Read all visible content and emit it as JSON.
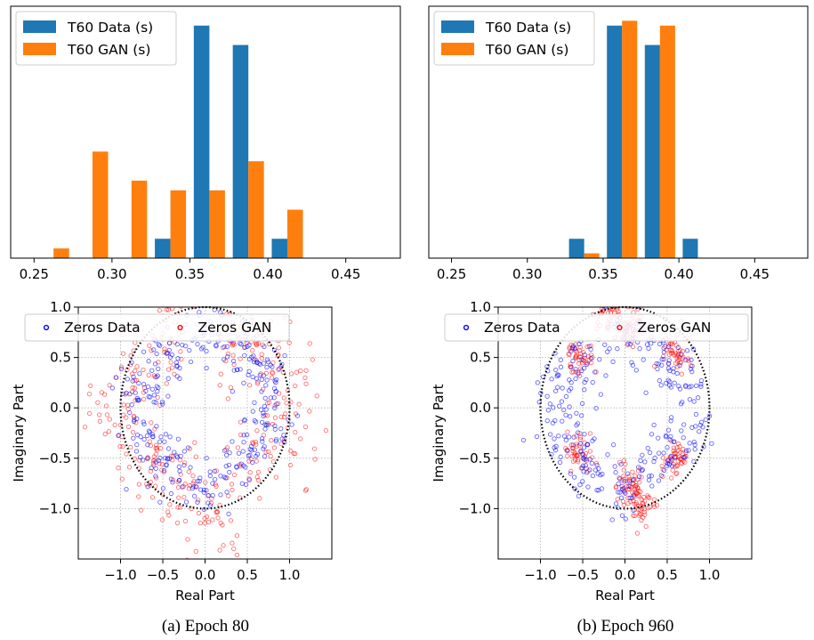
{
  "chart_data": [
    {
      "type": "bar",
      "panel": "a",
      "categories": [
        "0.25",
        "0.275",
        "0.30",
        "0.325",
        "0.35",
        "0.375",
        "0.40",
        "0.425"
      ],
      "series": [
        {
          "name": "T60 Data (s)",
          "color": "#1f77b4",
          "values": [
            0,
            0,
            0,
            2,
            24,
            22,
            2,
            0
          ]
        },
        {
          "name": "T60 GAN (s)",
          "color": "#ff7f0e",
          "values": [
            1,
            11,
            8,
            7,
            7,
            10,
            5,
            0
          ]
        }
      ],
      "xticks": [
        "0.25",
        "0.30",
        "0.35",
        "0.40",
        "0.45"
      ],
      "xlim": [
        0.235,
        0.485
      ],
      "legend": "top-left"
    },
    {
      "type": "bar",
      "panel": "b",
      "categories": [
        "0.25",
        "0.275",
        "0.30",
        "0.325",
        "0.35",
        "0.375",
        "0.40",
        "0.425"
      ],
      "series": [
        {
          "name": "T60 Data (s)",
          "color": "#1f77b4",
          "values": [
            0,
            0,
            0,
            2,
            24,
            22,
            2,
            0
          ]
        },
        {
          "name": "T60 GAN (s)",
          "color": "#ff7f0e",
          "values": [
            0,
            0,
            0,
            0.5,
            24.5,
            24,
            0,
            0
          ]
        }
      ],
      "xticks": [
        "0.25",
        "0.30",
        "0.35",
        "0.40",
        "0.45"
      ],
      "xlim": [
        0.235,
        0.485
      ],
      "legend": "top-left"
    },
    {
      "type": "scatter",
      "panel": "a",
      "xlabel": "Real Part",
      "ylabel": "Imaginary Part",
      "xlim": [
        -1.5,
        1.5
      ],
      "ylim": [
        -1.5,
        1.0
      ],
      "xticks": [
        "−1.0",
        "−0.5",
        "0.0",
        "0.5",
        "1.0"
      ],
      "yticks": [
        "1.0",
        "0.5",
        "0.0",
        "−0.5",
        "−1.0"
      ],
      "grid": true,
      "legend": "top",
      "unit_circle": true,
      "series": [
        {
          "name": "Zeros Data",
          "color": "#0000ff",
          "clusters": [
            [
              -0.45,
              0.5
            ],
            [
              0.45,
              0.55
            ],
            [
              -0.45,
              -0.55
            ],
            [
              0.45,
              -0.5
            ],
            [
              0.0,
              0.8
            ],
            [
              0.0,
              -0.8
            ],
            [
              -0.75,
              0.2
            ],
            [
              0.75,
              -0.2
            ],
            [
              0.7,
              0.3
            ],
            [
              -0.7,
              -0.3
            ]
          ],
          "spread": 0.22,
          "count": 320
        },
        {
          "name": "Zeros GAN",
          "color": "#ff0000",
          "clusters": [
            [
              -0.6,
              0.6
            ],
            [
              0.6,
              0.6
            ],
            [
              -0.6,
              -0.6
            ],
            [
              0.6,
              -0.6
            ],
            [
              0.2,
              0.9
            ],
            [
              -0.2,
              -0.9
            ],
            [
              -1.0,
              0.2
            ],
            [
              1.0,
              -0.3
            ],
            [
              -0.9,
              -0.3
            ],
            [
              0.9,
              0.3
            ],
            [
              0.1,
              -1.2
            ],
            [
              -0.3,
              1.1
            ]
          ],
          "spread": 0.3,
          "count": 380
        }
      ]
    },
    {
      "type": "scatter",
      "panel": "b",
      "xlabel": "Real Part",
      "ylabel": "Imaginary Part",
      "xlim": [
        -1.5,
        1.5
      ],
      "ylim": [
        -1.5,
        1.0
      ],
      "xticks": [
        "−1.0",
        "−0.5",
        "0.0",
        "0.5",
        "1.0"
      ],
      "yticks": [
        "1.0",
        "0.5",
        "0.0",
        "−0.5",
        "−1.0"
      ],
      "grid": true,
      "legend": "top",
      "unit_circle": true,
      "series": [
        {
          "name": "Zeros Data",
          "color": "#0000ff",
          "clusters": [
            [
              -0.45,
              0.5
            ],
            [
              0.45,
              0.55
            ],
            [
              -0.45,
              -0.55
            ],
            [
              0.45,
              -0.5
            ],
            [
              0.0,
              0.8
            ],
            [
              0.0,
              -0.8
            ],
            [
              -0.75,
              0.2
            ],
            [
              0.75,
              -0.2
            ],
            [
              0.7,
              0.3
            ],
            [
              -0.7,
              -0.3
            ]
          ],
          "spread": 0.22,
          "count": 320
        },
        {
          "name": "Zeros GAN",
          "color": "#ff0000",
          "clusters": [
            [
              -0.55,
              0.5
            ],
            [
              0.05,
              0.8
            ],
            [
              0.6,
              0.55
            ],
            [
              -0.55,
              -0.45
            ],
            [
              0.05,
              -0.75
            ],
            [
              0.6,
              -0.5
            ],
            [
              -0.2,
              0.95
            ],
            [
              0.2,
              -0.95
            ]
          ],
          "spread": 0.12,
          "count": 360
        }
      ]
    }
  ],
  "captions": [
    "(a) Epoch 80",
    "(b) Epoch 960"
  ]
}
